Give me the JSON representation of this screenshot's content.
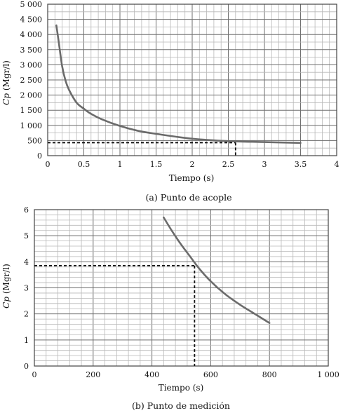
{
  "chart_data": [
    {
      "type": "line",
      "caption": "(a) Punto de acople",
      "xlabel": "Tiempo (s)",
      "ylabel_italic": "Cp",
      "ylabel_rest": " (Mgr/l)",
      "xlim": [
        0,
        4
      ],
      "ylim": [
        0,
        5000
      ],
      "x_ticks": [
        "0",
        "0.5",
        "1",
        "1.5",
        "2",
        "2.5",
        "3",
        "3.5",
        "4"
      ],
      "y_ticks": [
        "0",
        "500",
        "1 000",
        "1 500",
        "2 000",
        "2 500",
        "3 000",
        "3 500",
        "4 000",
        "4 500",
        "5 000"
      ],
      "grid": true,
      "series": [
        {
          "x": [
            0.12,
            0.15,
            0.2,
            0.25,
            0.3,
            0.4,
            0.5,
            0.6,
            0.75,
            1.0,
            1.25,
            1.5,
            2.0,
            2.5,
            3.0,
            3.5
          ],
          "values": [
            4300,
            3800,
            2950,
            2450,
            2150,
            1750,
            1550,
            1380,
            1200,
            980,
            820,
            720,
            560,
            480,
            450,
            420
          ]
        }
      ],
      "reference_point": {
        "x": 2.6,
        "y": 430
      }
    },
    {
      "type": "line",
      "caption": "(b) Punto de medición",
      "xlabel": "Tiempo (s)",
      "ylabel_italic": "Cp",
      "ylabel_rest": " (Mgr/l)",
      "xlim": [
        0,
        1000
      ],
      "ylim": [
        0,
        6
      ],
      "x_ticks": [
        "0",
        "200",
        "400",
        "600",
        "800",
        "1 000"
      ],
      "y_ticks": [
        "0",
        "1",
        "2",
        "3",
        "4",
        "5",
        "6"
      ],
      "grid": true,
      "series": [
        {
          "x": [
            440,
            470,
            500,
            530,
            560,
            600,
            650,
            700,
            750,
            800
          ],
          "values": [
            5.7,
            5.15,
            4.65,
            4.2,
            3.75,
            3.25,
            2.75,
            2.35,
            2.0,
            1.65
          ]
        }
      ],
      "reference_point": {
        "x": 545,
        "y": 3.85
      }
    }
  ]
}
